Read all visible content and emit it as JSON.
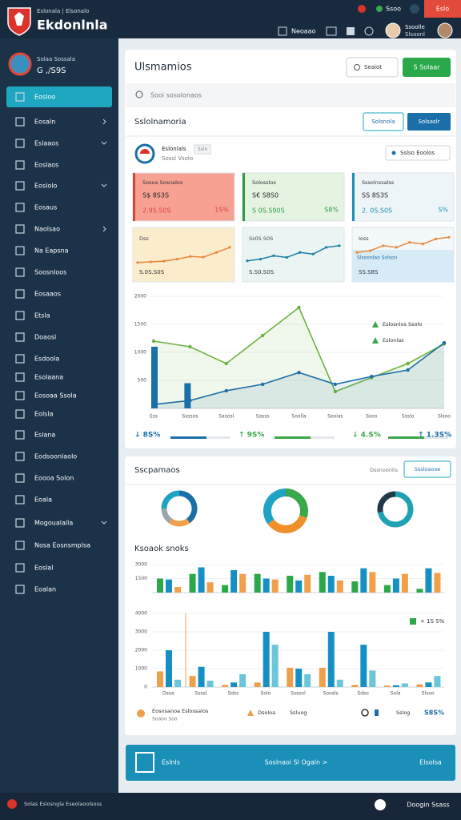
{
  "header": {
    "brand_tagline": "Eslonala | Elsonalo",
    "brand": "Ekdonlnla",
    "status": "Ssoo",
    "alert": "Eslo",
    "nav": "Neoaao",
    "user_name": "Ssoolle",
    "user_role": "Slsaonl"
  },
  "sidebar": {
    "profile_name": "Solaa Sossala",
    "profile_id": "G ,/S9S",
    "items": [
      {
        "label": "Eosloo"
      },
      {
        "label": "Eosaln",
        "submenu": "right"
      },
      {
        "label": "Eslaaos",
        "submenu": "down"
      },
      {
        "label": "Eoslaos"
      },
      {
        "label": "Eoslolo",
        "submenu": "down"
      },
      {
        "label": "Eosaus"
      },
      {
        "label": "Naolsao",
        "submenu": "right"
      },
      {
        "label": "Na Eapsna"
      },
      {
        "label": "Soosnloos"
      },
      {
        "label": "Eosaaos"
      },
      {
        "label": "Etsla"
      },
      {
        "label": "Doaosl"
      },
      {
        "label": "Esdoola"
      },
      {
        "label": "Esolaana"
      },
      {
        "label": "Eosoaa Ssola"
      },
      {
        "label": "Eolsla"
      },
      {
        "label": "Eslana"
      },
      {
        "label": "Eodsoonlaolo"
      },
      {
        "label": "Eoooa Solon"
      },
      {
        "label": "Eoala"
      },
      {
        "label": "Mogoualalla",
        "submenu": "down"
      },
      {
        "label": "Nosa Eosnsmplsa"
      },
      {
        "label": "Eoslal"
      },
      {
        "label": "Eoalan"
      }
    ]
  },
  "overview": {
    "title": "Ulsmamios",
    "select": "Seaiot",
    "action": "S Solaar",
    "search": "Sooi sosolonaos",
    "section": "Sslolnamoria",
    "tab_outline": "Solsnola",
    "tab_filled": "Solsaslr",
    "brand_name": "Eslonlals",
    "brand_sub": "Sossl Vsolo",
    "badge": "Sslo",
    "filter": "Sslso Eoolos",
    "stat_cards": [
      {
        "label": "Sosoa Sosnalos",
        "value": "S$ 8S3S",
        "sub": "2.9S.S0S",
        "pct": "1S%",
        "color": "#d9443a",
        "background": "#f7a193"
      },
      {
        "label": "Solosslos",
        "value": "S€ S8S0",
        "sub": "S 0S.S90S",
        "pct": "S8%",
        "color": "#2f9a42",
        "background": "#e4f4e0"
      },
      {
        "label": "Sssolnssalss",
        "value": "SS 8S3S",
        "sub": "2. 0S.S0S",
        "pct": "S%",
        "color": "#1b8fb0",
        "background": "#eef5f9"
      }
    ],
    "mini_charts": [
      {
        "label": "Dss",
        "caption": "S.0S.S0S",
        "color": "#e8883a",
        "background": "#fbeccc",
        "values": [
          10,
          12,
          14,
          20,
          28,
          26,
          40,
          55
        ]
      },
      {
        "label": "Ss0S S0S",
        "caption": "S.S0.S0S",
        "color": "#1b7fa8",
        "background": "#eaf5f3",
        "values": [
          15,
          20,
          30,
          25,
          40,
          35,
          55,
          60
        ]
      },
      {
        "label": "Ioss",
        "caption": "SS.S8S",
        "note": "Slsoonlao Solson",
        "color": "#e8883a",
        "background": "#f3f8fb",
        "values": [
          40,
          45,
          60,
          55,
          70,
          65,
          80,
          85
        ]
      }
    ],
    "chart": {
      "type": "line",
      "categories": [
        "Ess",
        "Ssssos",
        "Sasosl",
        "Sasss",
        "Soolla",
        "Sooias",
        "Ssoo",
        "Ssslo",
        "Slsoo"
      ],
      "series": [
        {
          "name": "Eslosnlos Ssolo",
          "color": "#6cb33f",
          "values": [
            1200,
            1100,
            800,
            1300,
            1800,
            300,
            550,
            800,
            1150
          ]
        },
        {
          "name": "Eslonlas",
          "color": "#1b6fa8",
          "values": [
            70,
            140,
            315,
            430,
            640,
            430,
            570,
            685,
            1170
          ]
        }
      ],
      "bars": {
        "color": "#1b6fa8",
        "values": [
          1100,
          450,
          null,
          null,
          null,
          null,
          null,
          null,
          null
        ]
      },
      "ylim": [
        0,
        2000
      ],
      "yticks": [
        500,
        1000,
        1500,
        2000
      ],
      "grid": true
    },
    "stats": [
      {
        "label": "↓ 8S%",
        "color": "#1b6fa8"
      },
      {
        "label": "↑ 9S%",
        "color": "#3aa84a"
      },
      {
        "label": "↓ 4.S%",
        "color": "#3aa84a"
      },
      {
        "label": "↑ 1.3S%",
        "color": "#1b6fa8"
      }
    ]
  },
  "analytics": {
    "title": "Sscpamaos",
    "hint": "Dssnoonlis",
    "button": "Sssloaooe",
    "donuts": [
      {
        "values": [
          40,
          20,
          15,
          25
        ],
        "colors": [
          "#1b6fa8",
          "#f0a04a",
          "#9aa5ad",
          "#1fa3c4"
        ]
      },
      {
        "values": [
          30,
          35,
          35
        ],
        "colors": [
          "#3aa84a",
          "#f0902a",
          "#1fa3c4"
        ]
      },
      {
        "values": [
          72,
          28
        ],
        "colors": [
          "#1fa3b4",
          "#213a48"
        ]
      }
    ],
    "bars_title": "Ksoaok snoks",
    "top_chart": {
      "type": "bar",
      "series": [
        {
          "color": "#2aa84a",
          "values": [
            1500,
            2000,
            800,
            2000,
            1800,
            2200,
            1200,
            800,
            400
          ]
        },
        {
          "color": "#1690c4",
          "values": [
            1400,
            2700,
            2400,
            1500,
            1300,
            1800,
            2600,
            1500,
            2600
          ]
        },
        {
          "color": "#f0a04a",
          "values": [
            600,
            1100,
            2000,
            1400,
            1900,
            1300,
            2200,
            2000,
            2100
          ]
        }
      ],
      "ylim": [
        0,
        3000
      ],
      "yticks": [
        1500,
        3000
      ],
      "grid": true
    },
    "bottom_chart": {
      "type": "bar",
      "categories": [
        "Dssa",
        "Ssssl",
        "Sdss",
        "Solo",
        "Ssssol",
        "Soosls",
        "Sdso",
        "Sola",
        "Slsoo"
      ],
      "series": [
        {
          "color": "#f0a04a",
          "values": [
            850,
            600,
            120,
            250,
            1050,
            1050,
            120,
            80,
            150
          ]
        },
        {
          "color": "#1690c4",
          "values": [
            2000,
            1100,
            250,
            3000,
            1000,
            3000,
            2300,
            100,
            250
          ]
        },
        {
          "color": "#6cc5d8",
          "values": [
            400,
            350,
            700,
            2300,
            700,
            400,
            900,
            200,
            600
          ]
        }
      ],
      "ylim": [
        0,
        4000
      ],
      "yticks": [
        0,
        1000,
        2000,
        3000,
        4000
      ],
      "grid": true,
      "tag": "+ 1S S%"
    },
    "legend": {
      "primary": "Eosnsanoa Eslossalos",
      "primary_sub": "Soaoo Soo",
      "item2": "Dsoloa",
      "item3": "Ssluog",
      "item4": "Sslog",
      "total": "S8S%"
    }
  },
  "banner": {
    "left": "Eslnls",
    "center": "Soslnaoi Sl Ogaln >",
    "right": "Elsolsa"
  },
  "footer": {
    "left": "Solas Eslosngla Eseolaoolsoss",
    "right": "Doogin Ssass"
  }
}
